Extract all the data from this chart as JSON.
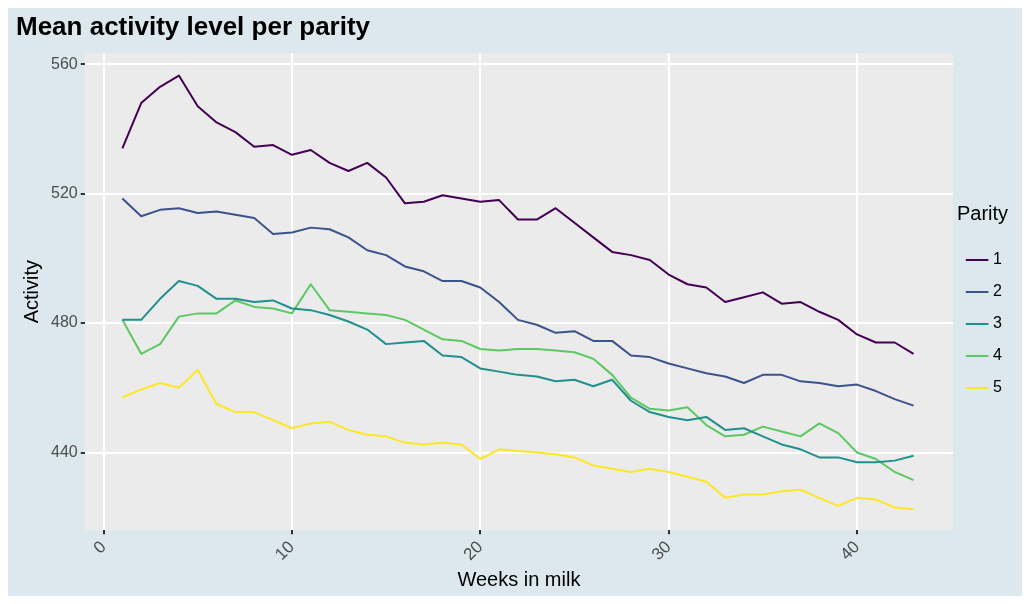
{
  "chart_data": {
    "type": "line",
    "title": "Mean activity level per parity",
    "xlabel": "Weeks in milk",
    "ylabel": "Activity",
    "legend_title": "Parity",
    "legend": "right",
    "grid": true,
    "marker": "none",
    "line_style": "solid",
    "x": [
      1,
      2,
      3,
      4,
      5,
      6,
      7,
      8,
      9,
      10,
      11,
      12,
      13,
      14,
      15,
      16,
      17,
      18,
      19,
      20,
      21,
      22,
      23,
      24,
      25,
      26,
      27,
      28,
      29,
      30,
      31,
      32,
      33,
      34,
      35,
      36,
      37,
      38,
      39,
      40,
      41,
      42,
      43
    ],
    "xlim": [
      -1,
      45.1
    ],
    "xticks": [
      0,
      10,
      20,
      30,
      40
    ],
    "ylim": [
      416,
      563.4
    ],
    "yticks": [
      440,
      480,
      520,
      560
    ],
    "series": [
      {
        "name": "1",
        "color": "#440154",
        "values": [
          534,
          548,
          553,
          556.5,
          547,
          542,
          539,
          534.5,
          535,
          532,
          533.5,
          529.5,
          527,
          529.5,
          525,
          517,
          517.5,
          519.5,
          518.5,
          517.5,
          518,
          512,
          512,
          515.5,
          511,
          506.5,
          502,
          501,
          499.5,
          495,
          492,
          491,
          486.5,
          488,
          489.5,
          486,
          486.5,
          483.5,
          481,
          476.5,
          474,
          474,
          470.5
        ]
      },
      {
        "name": "2",
        "color": "#3b528b",
        "values": [
          518.5,
          513,
          515,
          515.5,
          514,
          514.5,
          513.5,
          512.5,
          507.5,
          508,
          509.5,
          509,
          506.5,
          502.5,
          501,
          497.5,
          496,
          493,
          493,
          491,
          486.5,
          481,
          479.5,
          477,
          477.5,
          474.5,
          474.5,
          470,
          469.5,
          467.5,
          466,
          464.5,
          463.5,
          461.5,
          464,
          464,
          462,
          461.5,
          460.5,
          461,
          459,
          456.5,
          454.5
        ]
      },
      {
        "name": "3",
        "color": "#21908c",
        "values": [
          481,
          481,
          487.5,
          493,
          491.5,
          487.5,
          487.5,
          486.5,
          487,
          484.5,
          484,
          482.5,
          480.5,
          478,
          473.5,
          474,
          474.5,
          470,
          469.5,
          466,
          465,
          464,
          463.5,
          462,
          462.5,
          460.5,
          462.5,
          456,
          452.5,
          451,
          450,
          451,
          447,
          447.5,
          445,
          442.5,
          441,
          438.5,
          438.5,
          437,
          437,
          437.5,
          439
        ]
      },
      {
        "name": "4",
        "color": "#5dc863",
        "values": [
          481,
          470.5,
          473.5,
          482,
          483,
          483,
          487,
          485,
          484.5,
          483,
          492,
          484,
          483.5,
          483,
          482.5,
          481,
          478,
          475,
          474.5,
          472,
          471.5,
          472,
          472,
          471.5,
          471,
          469,
          464,
          457,
          453.5,
          453,
          454,
          448.5,
          445,
          445.5,
          448,
          446.5,
          445,
          449,
          446,
          440,
          438,
          434,
          431.5
        ]
      },
      {
        "name": "5",
        "color": "#fde725",
        "values": [
          457,
          459.5,
          461.5,
          460,
          465.5,
          455,
          452.5,
          452.5,
          450,
          447.5,
          449,
          449.5,
          447,
          445.5,
          445,
          443,
          442.5,
          443,
          442.5,
          438,
          441,
          440.5,
          440,
          439.5,
          438.5,
          436,
          435,
          434,
          435,
          434,
          432.5,
          431,
          426,
          427,
          427,
          428,
          428.5,
          426,
          423.5,
          426,
          425.5,
          423,
          422.5
        ]
      }
    ]
  }
}
